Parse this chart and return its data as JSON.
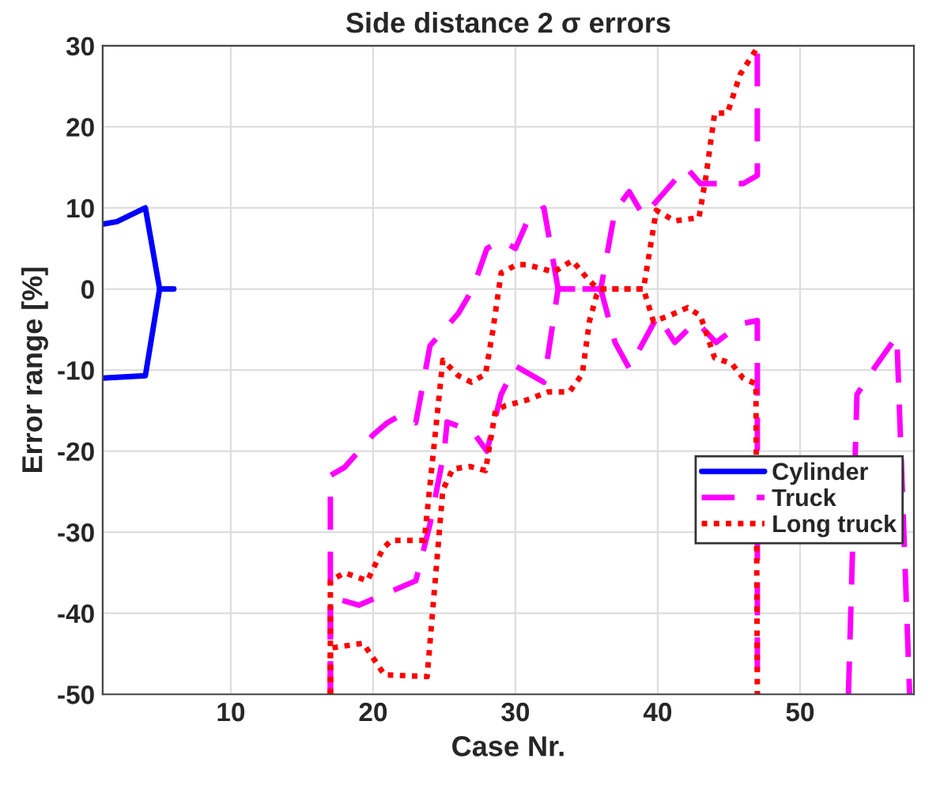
{
  "chart_data": {
    "type": "line",
    "title": "Side distance 2 σ errors",
    "xlabel": "Case Nr.",
    "ylabel": "Error range [%]",
    "xlim": [
      1,
      58
    ],
    "ylim": [
      -50,
      30
    ],
    "xticks": [
      10,
      20,
      30,
      40,
      50
    ],
    "yticks": [
      -50,
      -40,
      -30,
      -20,
      -10,
      0,
      10,
      20,
      30
    ],
    "grid": true,
    "legend": "right",
    "series": [
      {
        "name": "Cylinder",
        "color": "#0000ff",
        "line_style": "solid",
        "x": [
          1,
          2,
          4,
          5,
          6
        ],
        "values": [
          8,
          8.3,
          10,
          0,
          0
        ]
      },
      {
        "color": "#0000ff",
        "line_style": "solid",
        "x": [
          1,
          4,
          5
        ],
        "values": [
          -11,
          -10.7,
          0
        ]
      },
      {
        "name": "Truck",
        "color": "#ff00ff",
        "line_style": "dashed",
        "x": [
          17,
          17,
          18,
          19,
          20,
          21,
          22,
          23,
          24,
          25,
          26,
          27,
          28,
          29,
          30,
          31,
          32,
          33,
          36,
          37,
          38,
          39,
          40,
          42,
          43,
          46,
          47,
          47
        ],
        "values": [
          -50,
          -23,
          -22,
          -20,
          -18,
          -16.5,
          -15.5,
          -16.5,
          -7,
          -5,
          -3,
          0,
          5,
          6,
          5,
          9,
          10,
          0,
          0,
          9.7,
          12,
          9,
          11,
          15,
          13,
          13,
          14,
          30
        ]
      },
      {
        "color": "#ff00ff",
        "line_style": "dashed",
        "x": [
          17,
          17,
          19,
          21,
          23,
          24,
          25,
          25.2,
          27,
          28,
          29,
          30,
          32,
          33,
          36,
          37,
          38,
          38.6,
          40,
          41.2,
          42.7,
          44.1,
          45.8,
          47,
          47
        ],
        "values": [
          -50,
          -38,
          -39,
          -37.5,
          -36,
          -29,
          -20,
          -16.4,
          -17.6,
          -20,
          -13,
          -9.5,
          -11.5,
          0,
          0,
          -6.6,
          -9.8,
          -7.8,
          -3.3,
          -6.6,
          -4,
          -6.6,
          -4.3,
          -3.9,
          -50
        ]
      },
      {
        "color": "#ff00ff",
        "line_style": "dashed",
        "x": [
          53.4,
          54,
          55.2,
          56.8,
          57.7
        ],
        "values": [
          -50,
          -13,
          -9.8,
          -5.8,
          -50
        ]
      },
      {
        "name": "Long truck",
        "color": "#ff0000",
        "line_style": "dotted",
        "x": [
          17,
          17,
          18,
          19.6,
          20.7,
          21.3,
          23.6,
          24.9,
          26,
          26.9,
          27.9,
          28.4,
          29,
          30.1,
          30.8,
          32.7,
          34,
          35.1,
          35.8,
          39,
          39.7,
          40.8,
          42.1,
          43,
          44,
          45.2,
          46,
          46.9,
          47
        ],
        "values": [
          -50,
          -36,
          -35,
          -36,
          -32,
          -31,
          -31,
          -8.8,
          -10.7,
          -11.5,
          -10.5,
          -5.3,
          2,
          3,
          3,
          2.1,
          3.5,
          1.2,
          0,
          0,
          -4,
          -3.3,
          -2.3,
          -3.3,
          -8.5,
          -9.2,
          -11,
          -11.7,
          -50
        ]
      },
      {
        "color": "#ff0000",
        "line_style": "dotted",
        "x": [
          17,
          17,
          19.3,
          20.8,
          23.8,
          24.9,
          25.6,
          26.8,
          27.9,
          28.6,
          29.3,
          30.8,
          32.3,
          33.8,
          34.7,
          35.2,
          35.7,
          36,
          39,
          39.9,
          41.2,
          42.9,
          43.4,
          44,
          44.9,
          45.8,
          46.9,
          47
        ],
        "values": [
          -50,
          -44.3,
          -43.7,
          -47.6,
          -47.8,
          -24.8,
          -22.2,
          -21.9,
          -22.4,
          -15,
          -14.4,
          -13.7,
          -12.7,
          -12.7,
          -10.5,
          -4,
          -0.8,
          0,
          0,
          9.7,
          8.4,
          8.8,
          14,
          21.7,
          21.7,
          26.5,
          29.5,
          30
        ]
      }
    ]
  }
}
